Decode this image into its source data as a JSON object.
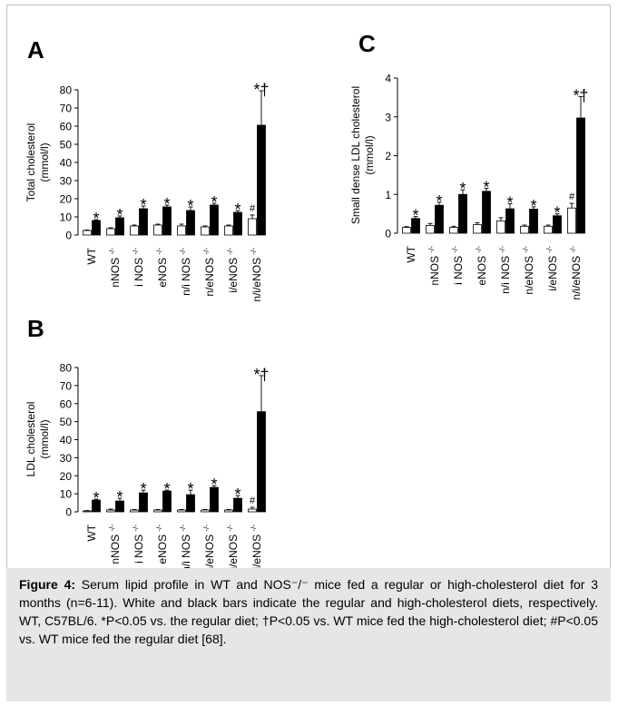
{
  "figure": {
    "caption_label": "Figure 4:",
    "caption_text": " Serum lipid profile in WT and NOS⁻/⁻ mice fed a regular or high-cholesterol diet for 3 months (n=6-11). White and black bars indicate the regular and high-cholesterol diets, respectively. WT, C57BL/6. *P<0.05 vs. the regular diet; †P<0.05 vs. WT mice fed the high-cholesterol diet; #P<0.05 vs. WT mice fed the regular diet [68]."
  },
  "colors": {
    "regular": "#ffffff",
    "high": "#000000",
    "axis": "#000000"
  },
  "chart_data": [
    {
      "panel": "A",
      "type": "bar",
      "ylabel": [
        "Total cholesterol",
        "(mmol/l)"
      ],
      "ylim": [
        0,
        80
      ],
      "yticks": [
        0,
        10,
        20,
        30,
        40,
        50,
        60,
        70,
        80
      ],
      "categories": [
        "WT",
        "nNOS -/-",
        "i NOS -/-",
        "eNOS -/-",
        "n/i NOS -/-",
        "n/eNOS -/-",
        "i/eNOS -/-",
        "n/i/eNOS -/-"
      ],
      "series": [
        {
          "values": [
            2.5,
            3.5,
            5.0,
            5.5,
            5.0,
            4.5,
            5.0,
            9.0
          ],
          "errors": [
            0.3,
            0.5,
            0.5,
            0.5,
            1.0,
            0.5,
            0.5,
            2.0
          ]
        },
        {
          "values": [
            8.0,
            9.5,
            14.5,
            15.5,
            13.5,
            16.5,
            12.5,
            60.5
          ],
          "errors": [
            0.5,
            1.0,
            1.5,
            1.0,
            2.0,
            1.0,
            1.0,
            19.0
          ]
        }
      ],
      "annotations": [
        {
          "category": 0,
          "text": "*",
          "on": "high"
        },
        {
          "category": 1,
          "text": "*",
          "on": "high"
        },
        {
          "category": 2,
          "text": "*",
          "on": "high"
        },
        {
          "category": 3,
          "text": "*",
          "on": "high"
        },
        {
          "category": 4,
          "text": "*",
          "on": "high"
        },
        {
          "category": 5,
          "text": "*",
          "on": "high"
        },
        {
          "category": 6,
          "text": "*",
          "on": "high"
        },
        {
          "category": 7,
          "text": "#",
          "on": "regular"
        },
        {
          "category": 7,
          "text": "*†",
          "on": "high"
        }
      ]
    },
    {
      "panel": "B",
      "type": "bar",
      "ylabel": [
        "LDL cholesterol",
        "(mmol/l)"
      ],
      "ylim": [
        0,
        80
      ],
      "yticks": [
        0,
        10,
        20,
        30,
        40,
        50,
        60,
        70,
        80
      ],
      "categories": [
        "WT",
        "nNOS -/-",
        "i NOS -/-",
        "eNOS -/-",
        "n/i NOS -/-",
        "n/eNOS -/-",
        "i/eNOS -/-",
        "n/i/eNOS -/-"
      ],
      "series": [
        {
          "values": [
            0.5,
            1.0,
            1.0,
            1.0,
            1.0,
            1.0,
            1.0,
            1.5
          ],
          "errors": [
            0.2,
            0.5,
            0.3,
            0.3,
            0.3,
            0.3,
            0.3,
            1.0
          ]
        },
        {
          "values": [
            6.5,
            6.0,
            10.5,
            11.5,
            9.5,
            13.5,
            7.5,
            55.5
          ],
          "errors": [
            0.5,
            1.5,
            1.5,
            0.5,
            2.5,
            1.0,
            1.5,
            20.0
          ]
        }
      ],
      "annotations": [
        {
          "category": 0,
          "text": "*",
          "on": "high"
        },
        {
          "category": 1,
          "text": "*",
          "on": "high"
        },
        {
          "category": 2,
          "text": "*",
          "on": "high"
        },
        {
          "category": 3,
          "text": "*",
          "on": "high"
        },
        {
          "category": 4,
          "text": "*",
          "on": "high"
        },
        {
          "category": 5,
          "text": "*",
          "on": "high"
        },
        {
          "category": 6,
          "text": "*",
          "on": "high"
        },
        {
          "category": 7,
          "text": "#",
          "on": "regular"
        },
        {
          "category": 7,
          "text": "*†",
          "on": "high"
        }
      ]
    },
    {
      "panel": "C",
      "type": "bar",
      "ylabel": [
        "Small dense LDL cholesterol",
        "(mmol/l)"
      ],
      "ylim": [
        0,
        4
      ],
      "yticks": [
        0,
        1,
        2,
        3,
        4
      ],
      "categories": [
        "WT",
        "nNOS -/-",
        "i NOS -/-",
        "eNOS -/-",
        "n/i NOS -/-",
        "n/eNOS -/-",
        "i/eNOS -/-",
        "n/i/eNOS -/-"
      ],
      "series": [
        {
          "values": [
            0.15,
            0.2,
            0.15,
            0.22,
            0.32,
            0.18,
            0.18,
            0.65
          ],
          "errors": [
            0.02,
            0.05,
            0.03,
            0.05,
            0.08,
            0.03,
            0.03,
            0.12
          ]
        },
        {
          "values": [
            0.38,
            0.72,
            1.0,
            1.08,
            0.63,
            0.62,
            0.45,
            2.97
          ],
          "errors": [
            0.05,
            0.08,
            0.12,
            0.08,
            0.13,
            0.06,
            0.05,
            0.55
          ]
        }
      ],
      "annotations": [
        {
          "category": 0,
          "text": "*",
          "on": "high"
        },
        {
          "category": 1,
          "text": "*",
          "on": "high"
        },
        {
          "category": 2,
          "text": "*",
          "on": "high"
        },
        {
          "category": 3,
          "text": "*",
          "on": "high"
        },
        {
          "category": 4,
          "text": "*",
          "on": "high"
        },
        {
          "category": 5,
          "text": "*",
          "on": "high"
        },
        {
          "category": 6,
          "text": "*",
          "on": "high"
        },
        {
          "category": 7,
          "text": "#",
          "on": "regular"
        },
        {
          "category": 7,
          "text": "*†",
          "on": "high"
        }
      ]
    }
  ]
}
